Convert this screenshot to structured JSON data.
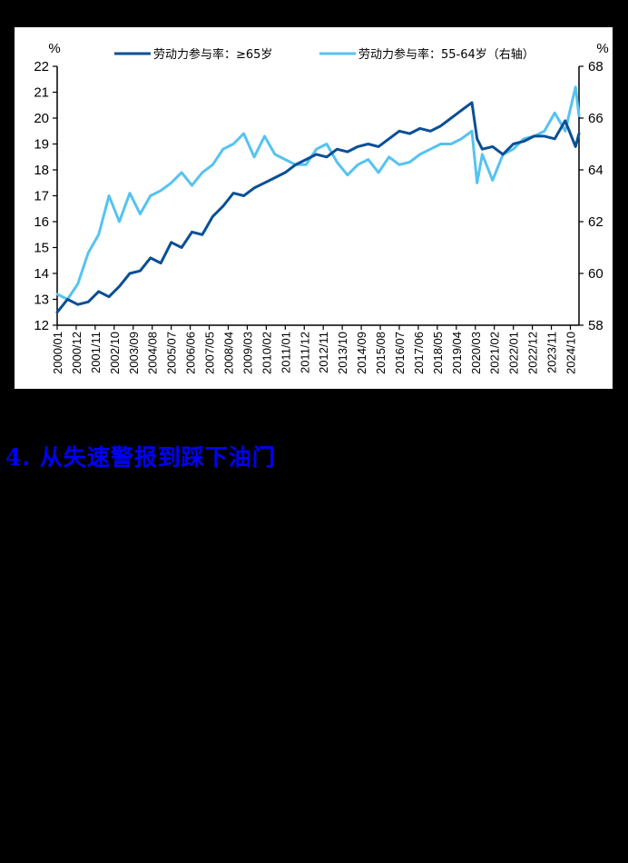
{
  "heading": "4. 从失速警报到踩下油门",
  "chart_data": {
    "type": "line",
    "title": "",
    "left_axis": {
      "unit": "%",
      "min": 12,
      "max": 22,
      "ticks": [
        12,
        13,
        14,
        15,
        16,
        17,
        18,
        19,
        20,
        21,
        22
      ]
    },
    "right_axis": {
      "unit": "%",
      "min": 58,
      "max": 68,
      "ticks": [
        58,
        60,
        62,
        64,
        66,
        68
      ]
    },
    "x_tick_labels": [
      "2000/01",
      "2000/12",
      "2001/11",
      "2002/10",
      "2003/09",
      "2004/08",
      "2005/07",
      "2006/06",
      "2007/05",
      "2008/04",
      "2009/03",
      "2010/02",
      "2011/01",
      "2011/12",
      "2012/11",
      "2013/10",
      "2014/09",
      "2015/08",
      "2016/07",
      "2017/06",
      "2018/05",
      "2019/04",
      "2020/03",
      "2021/02",
      "2022/01",
      "2022/12",
      "2023/11",
      "2024/10"
    ],
    "x_range": [
      "2000/01",
      "2025/03"
    ],
    "legend_position": "top",
    "series": [
      {
        "name": "劳动力参与率：≥65岁",
        "axis": "left",
        "color": "#0a4f96",
        "x": [
          "2000/01",
          "2000/07",
          "2001/01",
          "2001/07",
          "2002/01",
          "2002/07",
          "2003/01",
          "2003/07",
          "2004/01",
          "2004/07",
          "2005/01",
          "2005/07",
          "2006/01",
          "2006/07",
          "2007/01",
          "2007/07",
          "2008/01",
          "2008/07",
          "2009/01",
          "2009/07",
          "2010/01",
          "2010/07",
          "2011/01",
          "2011/07",
          "2012/01",
          "2012/07",
          "2013/01",
          "2013/07",
          "2014/01",
          "2014/07",
          "2015/01",
          "2015/07",
          "2016/01",
          "2016/07",
          "2017/01",
          "2017/07",
          "2018/01",
          "2018/07",
          "2019/01",
          "2019/07",
          "2020/01",
          "2020/04",
          "2020/07",
          "2021/01",
          "2021/07",
          "2022/01",
          "2022/07",
          "2023/01",
          "2023/07",
          "2024/01",
          "2024/07",
          "2025/01",
          "2025/03"
        ],
        "values": [
          12.5,
          13.0,
          12.8,
          12.9,
          13.3,
          13.1,
          13.5,
          14.0,
          14.1,
          14.6,
          14.4,
          15.2,
          15.0,
          15.6,
          15.5,
          16.2,
          16.6,
          17.1,
          17.0,
          17.3,
          17.5,
          17.7,
          17.9,
          18.2,
          18.4,
          18.6,
          18.5,
          18.8,
          18.7,
          18.9,
          19.0,
          18.9,
          19.2,
          19.5,
          19.4,
          19.6,
          19.5,
          19.7,
          20.0,
          20.3,
          20.6,
          19.2,
          18.8,
          18.9,
          18.6,
          19.0,
          19.1,
          19.3,
          19.3,
          19.2,
          19.9,
          18.9,
          19.4
        ]
      },
      {
        "name": "劳动力参与率：55-64岁（右轴）",
        "axis": "right",
        "color": "#55c3f0",
        "x": [
          "2000/01",
          "2000/07",
          "2001/01",
          "2001/07",
          "2002/01",
          "2002/07",
          "2003/01",
          "2003/07",
          "2004/01",
          "2004/07",
          "2005/01",
          "2005/07",
          "2006/01",
          "2006/07",
          "2007/01",
          "2007/07",
          "2008/01",
          "2008/07",
          "2009/01",
          "2009/07",
          "2010/01",
          "2010/07",
          "2011/01",
          "2011/07",
          "2012/01",
          "2012/07",
          "2013/01",
          "2013/07",
          "2014/01",
          "2014/07",
          "2015/01",
          "2015/07",
          "2016/01",
          "2016/07",
          "2017/01",
          "2017/07",
          "2018/01",
          "2018/07",
          "2019/01",
          "2019/07",
          "2020/01",
          "2020/04",
          "2020/07",
          "2021/01",
          "2021/07",
          "2022/01",
          "2022/07",
          "2023/01",
          "2023/07",
          "2024/01",
          "2024/07",
          "2025/01",
          "2025/03"
        ],
        "values": [
          59.2,
          59.0,
          59.6,
          60.8,
          61.5,
          63.0,
          62.0,
          63.1,
          62.3,
          63.0,
          63.2,
          63.5,
          63.9,
          63.4,
          63.9,
          64.2,
          64.8,
          65.0,
          65.4,
          64.5,
          65.3,
          64.6,
          64.4,
          64.2,
          64.2,
          64.8,
          65.0,
          64.3,
          63.8,
          64.2,
          64.4,
          63.9,
          64.5,
          64.2,
          64.3,
          64.6,
          64.8,
          65.0,
          65.0,
          65.2,
          65.5,
          63.5,
          64.6,
          63.6,
          64.6,
          64.8,
          65.2,
          65.3,
          65.5,
          66.2,
          65.5,
          67.2,
          66.1
        ]
      }
    ]
  }
}
